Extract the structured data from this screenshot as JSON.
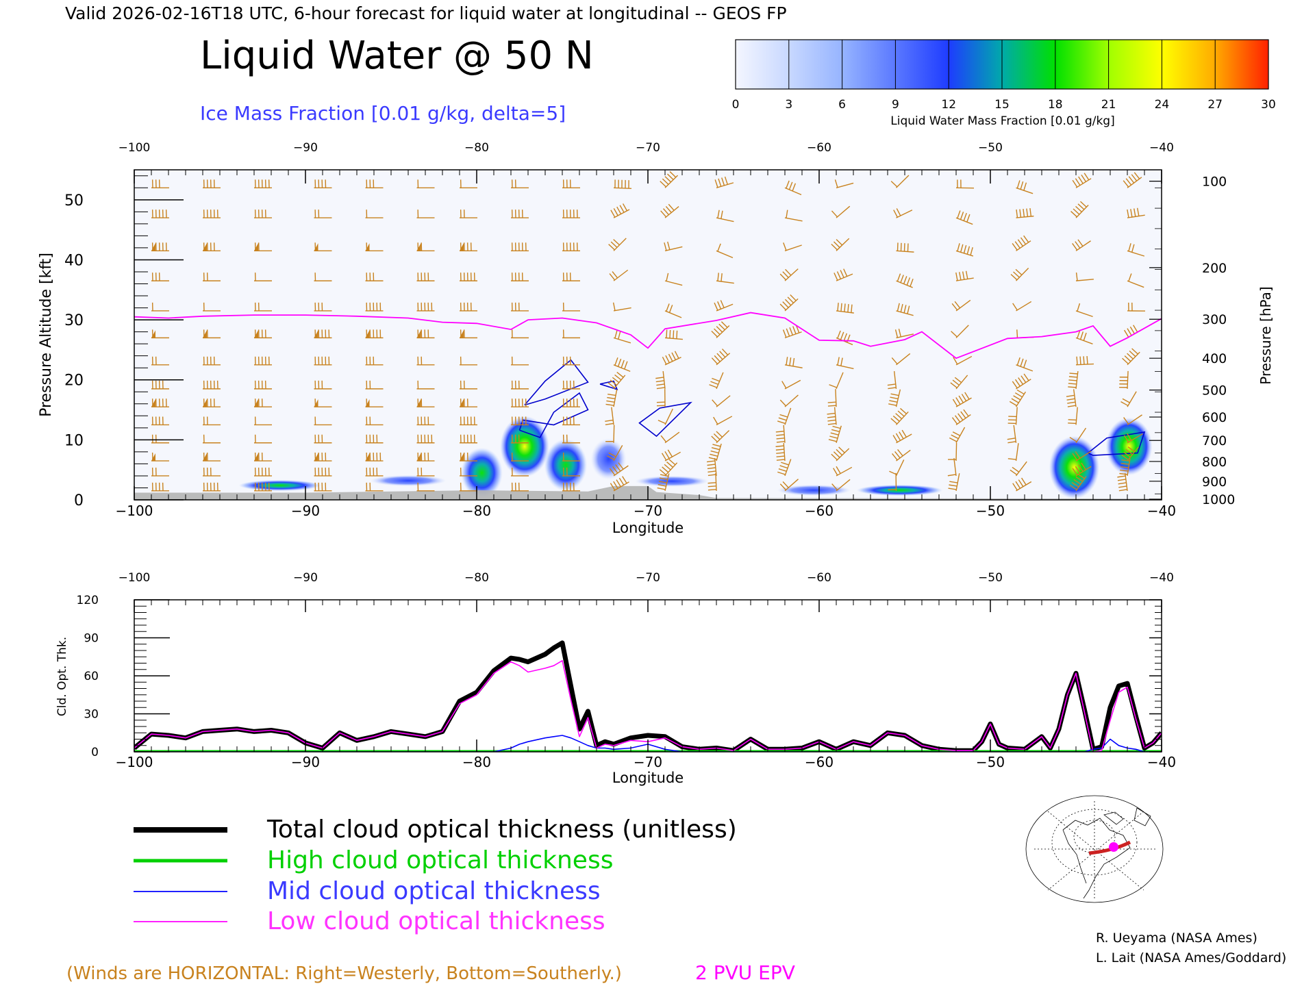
{
  "header": {
    "valid_line": "Valid 2026-02-16T18 UTC, 6-hour forecast for liquid water at longitudinal -- GEOS FP",
    "title": "Liquid Water @ 50 N",
    "subtitle": "Ice Mass Fraction [0.01 g/kg, delta=5]"
  },
  "colors": {
    "low": "#ff00ff",
    "mid": "#0000ff",
    "high": "#00d000",
    "total": "#000000",
    "wind": "#c8821e",
    "epv": "#ff00ff",
    "terrain": "#b4b4b4",
    "ice_contour": "#0000cc"
  },
  "colorbar": {
    "label": "Liquid Water Mass Fraction [0.01 g/kg]",
    "ticks": [
      "0",
      "3",
      "6",
      "9",
      "12",
      "15",
      "18",
      "21",
      "24",
      "27",
      "30"
    ],
    "colors": [
      "#f4f6ff",
      "#c8d8ff",
      "#96b4ff",
      "#5a78ff",
      "#1e3cff",
      "#00aaaa",
      "#00e000",
      "#a0ff00",
      "#ffff00",
      "#ffaa00",
      "#ff2000"
    ]
  },
  "chart_data": [
    {
      "type": "heatmap",
      "title": "Liquid Water @ 50 N",
      "xlabel": "Longitude",
      "ylabel": "Pressure Altitude [kft]",
      "ylabel_right": "Pressure [hPa]",
      "xlim": [
        -100,
        -40
      ],
      "ylim": [
        0,
        55
      ],
      "x_ticks": [
        "-100",
        "-90",
        "-80",
        "-70",
        "-60",
        "-50",
        "-40"
      ],
      "x_top_ticks": [
        "-100",
        "-90",
        "-80",
        "-70",
        "-60",
        "-50",
        "-40"
      ],
      "y_ticks": [
        "0",
        "10",
        "20",
        "30",
        "40",
        "50"
      ],
      "pressure_ticks": [
        {
          "label": "100",
          "kft": 53.1
        },
        {
          "label": "200",
          "kft": 38.7
        },
        {
          "label": "300",
          "kft": 30.1
        },
        {
          "label": "400",
          "kft": 23.6
        },
        {
          "label": "500",
          "kft": 18.3
        },
        {
          "label": "600",
          "kft": 13.8
        },
        {
          "label": "700",
          "kft": 9.9
        },
        {
          "label": "800",
          "kft": 6.4
        },
        {
          "label": "900",
          "kft": 3.1
        },
        {
          "label": "1000",
          "kft": 0.1
        }
      ],
      "epv_2pvu_kft": [
        [
          -100,
          30.5
        ],
        [
          -98,
          30.3
        ],
        [
          -96,
          30.6
        ],
        [
          -93,
          30.8
        ],
        [
          -90,
          30.8
        ],
        [
          -87,
          30.6
        ],
        [
          -84,
          30.3
        ],
        [
          -82,
          29.6
        ],
        [
          -80,
          29.4
        ],
        [
          -78,
          28.4
        ],
        [
          -77,
          30.0
        ],
        [
          -75,
          30.3
        ],
        [
          -73,
          29.5
        ],
        [
          -71,
          27.5
        ],
        [
          -70,
          25.3
        ],
        [
          -69,
          28.5
        ],
        [
          -66,
          29.9
        ],
        [
          -64,
          31.2
        ],
        [
          -62,
          30.3
        ],
        [
          -60,
          26.6
        ],
        [
          -58,
          26.5
        ],
        [
          -57,
          25.6
        ],
        [
          -55,
          26.7
        ],
        [
          -54,
          28.0
        ],
        [
          -52,
          23.6
        ],
        [
          -49,
          26.9
        ],
        [
          -47,
          27.2
        ],
        [
          -45,
          28.0
        ],
        [
          -44,
          29.0
        ],
        [
          -43,
          25.6
        ],
        [
          -42,
          27.0
        ],
        [
          -40,
          30.2
        ]
      ],
      "liquid_blobs": [
        {
          "lon": -77.2,
          "kft": 8.9,
          "value": 22
        },
        {
          "lon": -79.7,
          "kft": 4.5,
          "value": 16
        },
        {
          "lon": -74.8,
          "kft": 5.8,
          "value": 17
        },
        {
          "lon": -72.3,
          "kft": 6.8,
          "value": 11
        },
        {
          "lon": -91.5,
          "kft": 2.4,
          "value": 12
        },
        {
          "lon": -84,
          "kft": 3.2,
          "value": 9
        },
        {
          "lon": -55.3,
          "kft": 1.6,
          "value": 14
        },
        {
          "lon": -45.1,
          "kft": 5.4,
          "value": 23
        },
        {
          "lon": -41.9,
          "kft": 8.9,
          "value": 20
        },
        {
          "lon": -68.6,
          "kft": 3.1,
          "value": 8
        },
        {
          "lon": -60.3,
          "kft": 1.6,
          "value": 8
        }
      ],
      "ice_contours": [
        [
          [
            -77.5,
            11.6
          ],
          [
            -76.3,
            10.4
          ],
          [
            -75.5,
            14.6
          ],
          [
            -74,
            17.8
          ],
          [
            -73.5,
            15
          ],
          [
            -75.5,
            12.5
          ],
          [
            -77.3,
            13.3
          ],
          [
            -77.5,
            11.6
          ]
        ],
        [
          [
            -77.2,
            15.8
          ],
          [
            -76,
            19.8
          ],
          [
            -74.5,
            23.3
          ],
          [
            -73.5,
            19.6
          ],
          [
            -76,
            16.8
          ],
          [
            -77.2,
            15.8
          ]
        ],
        [
          [
            -69.3,
            15.3
          ],
          [
            -67.5,
            16.2
          ],
          [
            -69.5,
            10.6
          ],
          [
            -70.5,
            12.8
          ],
          [
            -69.3,
            15.3
          ]
        ],
        [
          [
            -72.8,
            19.3
          ],
          [
            -71.8,
            18.4
          ],
          [
            -72,
            19.8
          ],
          [
            -72.8,
            19.3
          ]
        ],
        [
          [
            -44.3,
            7.8
          ],
          [
            -43.2,
            10.3
          ],
          [
            -41,
            11.3
          ],
          [
            -41.4,
            7.8
          ],
          [
            -44,
            7.4
          ],
          [
            -44.3,
            7.8
          ]
        ]
      ],
      "terrain": [
        [
          -100,
          1.2
        ],
        [
          -90,
          1.2
        ],
        [
          -80,
          1.6
        ],
        [
          -73.5,
          1.4
        ],
        [
          -72,
          2.3
        ],
        [
          -70,
          2.3
        ],
        [
          -69.5,
          1.3
        ],
        [
          -67,
          0.8
        ],
        [
          -66,
          0.3
        ],
        [
          -40,
          0.2
        ]
      ],
      "wind_columns": [
        -99,
        -96,
        -93,
        -89.5,
        -86.5,
        -83.5,
        -81,
        -78,
        -75,
        -72,
        -69,
        -66,
        -62,
        -59,
        -55.5,
        -52,
        -48.5,
        -45,
        -42
      ]
    },
    {
      "type": "line",
      "xlabel": "Longitude",
      "ylabel": "Cld. Opt. Thk.",
      "xlim": [
        -100,
        -40
      ],
      "ylim": [
        0,
        120
      ],
      "x_ticks": [
        "-100",
        "-90",
        "-80",
        "-70",
        "-60",
        "-50",
        "-40"
      ],
      "x_top_ticks": [
        "-100",
        "-90",
        "-80",
        "-70",
        "-60",
        "-50",
        "-40"
      ],
      "y_ticks": [
        "0",
        "30",
        "60",
        "90",
        "120"
      ],
      "x": [
        -100,
        -99,
        -98,
        -97,
        -96,
        -95,
        -94,
        -93,
        -92,
        -91,
        -90,
        -89,
        -88,
        -87,
        -86,
        -85,
        -84,
        -83,
        -82,
        -81,
        -80,
        -79,
        -78,
        -77.5,
        -77,
        -76,
        -75.5,
        -75,
        -74.5,
        -74,
        -73.5,
        -73,
        -72.5,
        -72,
        -71,
        -70,
        -69,
        -68,
        -67,
        -66,
        -65,
        -64,
        -63,
        -62,
        -61,
        -60,
        -59,
        -58,
        -57,
        -56,
        -55,
        -54,
        -53,
        -52,
        -51,
        -50.5,
        -50,
        -49.5,
        -49,
        -48,
        -47,
        -46.5,
        -46,
        -45.5,
        -45,
        -44.5,
        -44,
        -43.5,
        -43,
        -42.5,
        -42,
        -41.5,
        -41,
        -40.5,
        -40
      ],
      "series": [
        {
          "name": "Total cloud optical thickness (unitless)",
          "values": [
            3,
            14,
            13,
            11,
            16,
            17,
            18,
            16,
            17,
            15,
            7,
            3,
            15,
            9,
            12,
            16,
            14,
            12,
            16,
            40,
            47,
            64,
            74,
            73,
            71,
            77,
            82,
            86,
            52,
            18,
            32,
            5,
            8,
            6,
            11,
            13,
            12,
            4,
            2,
            3,
            1,
            10,
            2,
            2,
            3,
            8,
            2,
            8,
            5,
            15,
            13,
            5,
            2,
            1,
            1,
            8,
            22,
            6,
            3,
            2,
            12,
            3,
            18,
            45,
            62,
            33,
            2,
            4,
            35,
            52,
            54,
            28,
            3,
            7,
            15
          ]
        },
        {
          "name": "High cloud optical thickness",
          "values": [
            0,
            0,
            0,
            0,
            0,
            0,
            0,
            0,
            0,
            0,
            0,
            0,
            0,
            0,
            0,
            0,
            0,
            0,
            0,
            0,
            0,
            0,
            0,
            0,
            0,
            0,
            0,
            0,
            0,
            0,
            0,
            0,
            0,
            0,
            0,
            0,
            0,
            0,
            0,
            0,
            0,
            0,
            0,
            0,
            0,
            0,
            0,
            0,
            0,
            0,
            0,
            0,
            0,
            0,
            0,
            0,
            0,
            0,
            0,
            0,
            0,
            0,
            0,
            0,
            0,
            0,
            0,
            0,
            0,
            0,
            0,
            0,
            0,
            0,
            0
          ]
        },
        {
          "name": "Mid cloud optical thickness",
          "values": [
            0,
            0,
            0,
            0,
            0,
            0,
            0,
            0,
            0,
            0,
            0,
            0,
            0,
            0,
            0,
            0,
            0,
            0,
            0,
            0,
            0,
            0,
            3,
            6,
            8,
            11,
            12,
            13,
            11,
            8,
            5,
            3,
            3,
            2,
            3,
            6,
            2,
            0,
            0,
            0,
            0,
            0,
            0,
            0,
            0,
            0,
            0,
            0,
            0,
            0,
            0,
            0,
            0,
            0,
            0,
            0,
            0,
            0,
            0,
            0,
            0,
            0,
            0,
            0,
            0,
            0,
            2,
            3,
            10,
            5,
            3,
            2,
            0,
            0,
            0
          ]
        },
        {
          "name": "Low cloud optical thickness",
          "values": [
            3,
            14,
            13,
            11,
            16,
            17,
            18,
            16,
            17,
            15,
            7,
            3,
            15,
            9,
            12,
            16,
            14,
            12,
            16,
            38,
            45,
            62,
            71,
            68,
            63,
            66,
            68,
            72,
            41,
            12,
            27,
            3,
            6,
            5,
            9,
            8,
            11,
            4,
            2,
            3,
            1,
            10,
            2,
            2,
            3,
            8,
            2,
            8,
            5,
            15,
            13,
            5,
            2,
            1,
            1,
            8,
            22,
            6,
            3,
            2,
            12,
            3,
            18,
            45,
            62,
            31,
            0,
            1,
            25,
            47,
            51,
            26,
            3,
            7,
            15
          ]
        }
      ]
    }
  ],
  "legend": {
    "total": "Total cloud optical thickness (unitless)",
    "high": "High cloud optical thickness",
    "mid": "Mid cloud optical thickness",
    "low": "Low cloud optical thickness"
  },
  "footer": {
    "winds_note": "(Winds are HORIZONTAL: Right=Westerly, Bottom=Southerly.)",
    "epv_label": "2 PVU EPV",
    "credit1": "R. Ueyama (NASA Ames)",
    "credit2": "L. Lait (NASA Ames/Goddard)"
  }
}
